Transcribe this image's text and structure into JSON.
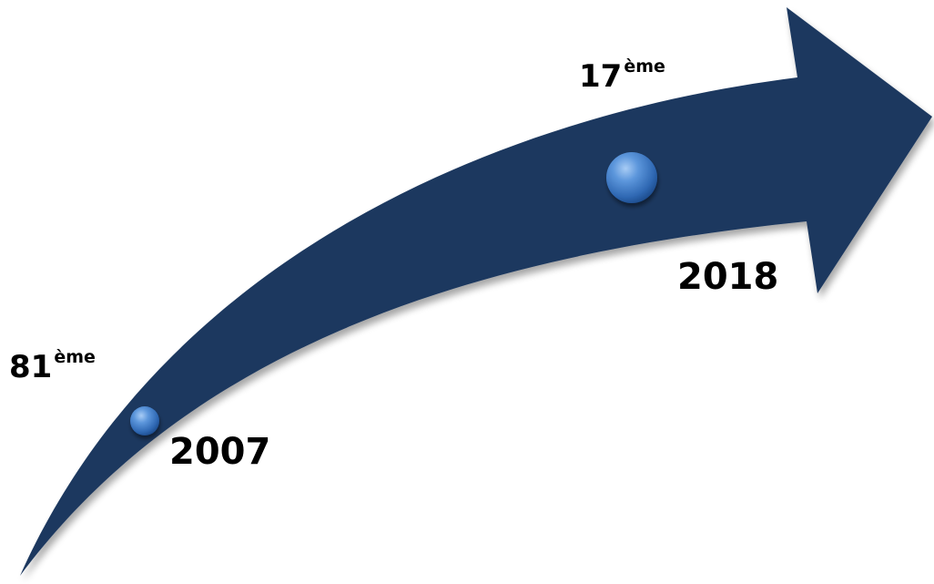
{
  "arrow": {
    "color": "#1c385f"
  },
  "milestones": [
    {
      "rank_number": "81",
      "rank_suffix": "ème",
      "year": "2007",
      "marker_color": "#3f7fcc"
    },
    {
      "rank_number": "17",
      "rank_suffix": "ème",
      "year": "2018",
      "marker_color": "#3f7fcc"
    }
  ]
}
